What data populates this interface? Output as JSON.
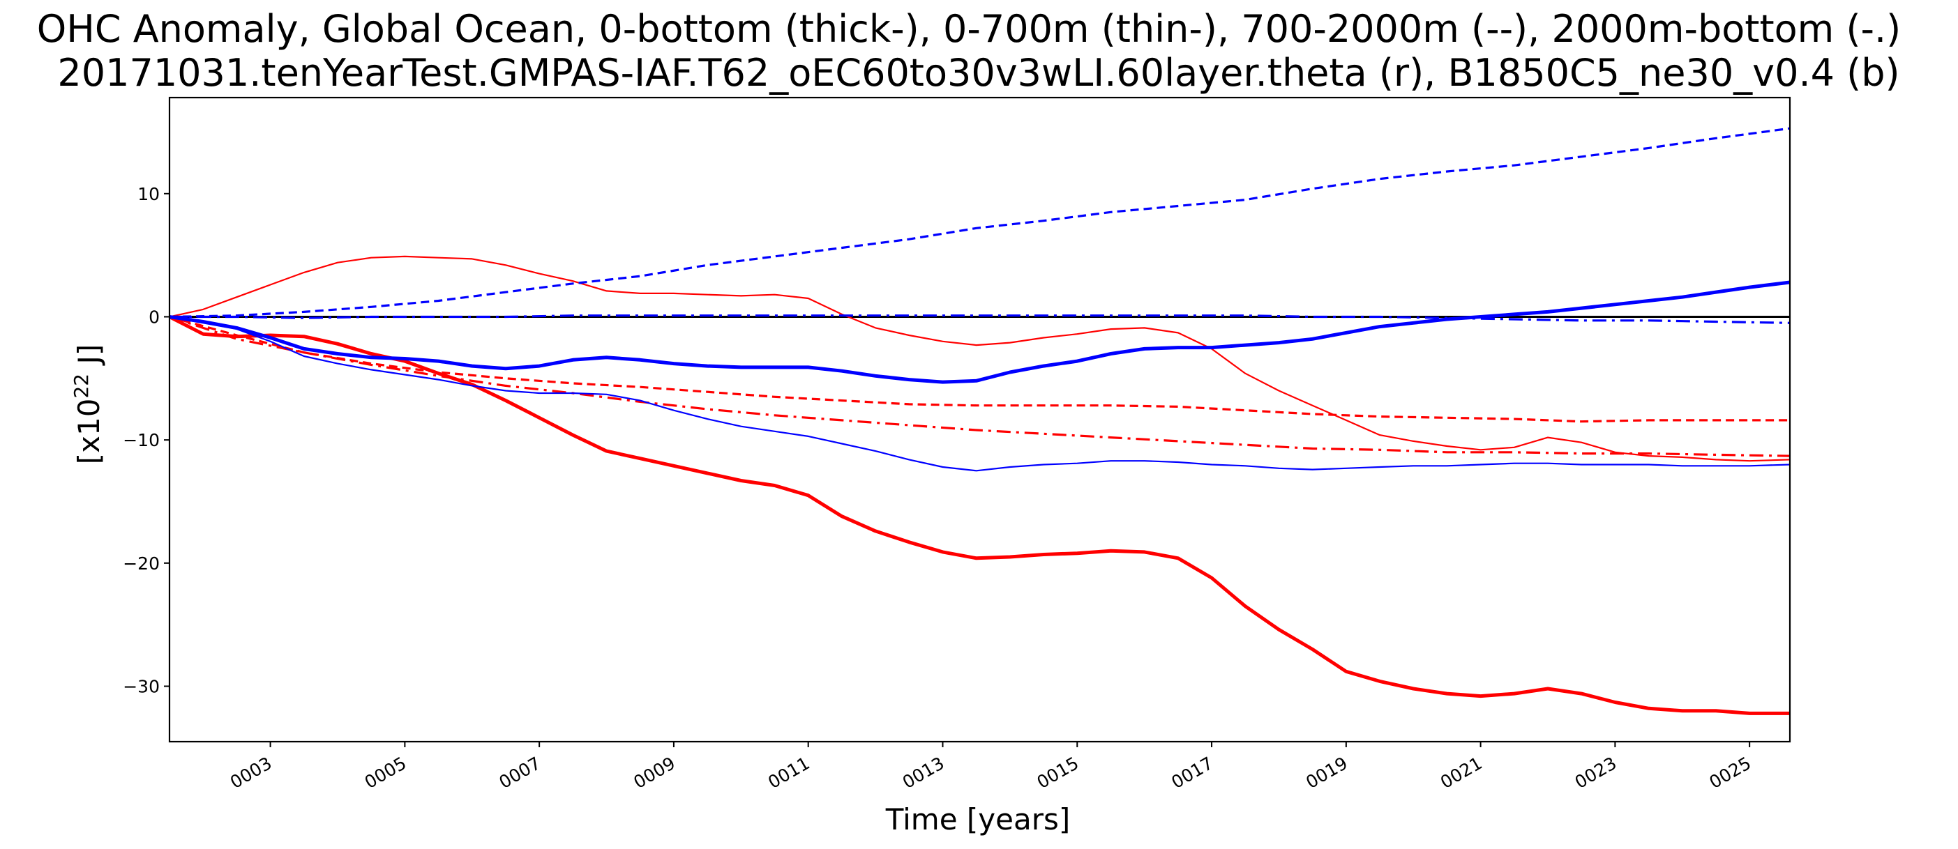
{
  "chart_data": {
    "type": "line",
    "title": "OHC Anomaly, Global Ocean, 0-bottom (thick-), 0-700m (thin-), 700-2000m (--), 2000m-bottom (-.)",
    "subtitle": "20171031.tenYearTest.GMPAS-IAF.T62_oEC60to30v3wLI.60layer.theta (r), B1850C5_ne30_v0.4 (b)",
    "xlabel": "Time [years]",
    "ylabel_base": "[x10",
    "ylabel_exp": "22",
    "ylabel_unit": " J]",
    "xlim": [
      1.5,
      25.6
    ],
    "ylim": [
      -34.5,
      17.8
    ],
    "x_ticks": [
      3,
      5,
      7,
      9,
      11,
      13,
      15,
      17,
      19,
      21,
      23,
      25
    ],
    "x_tick_labels": [
      "0003",
      "0005",
      "0007",
      "0009",
      "0011",
      "0013",
      "0015",
      "0017",
      "0019",
      "0021",
      "0023",
      "0025"
    ],
    "y_ticks": [
      10,
      0,
      -10,
      -20,
      -30
    ],
    "y_tick_labels": [
      "10",
      "0",
      "−10",
      "−20",
      "−30"
    ],
    "zero_line": true,
    "series": [
      {
        "name": "red 0-bottom (thick)",
        "color": "#ff0000",
        "style": "solid",
        "weight": "thick",
        "x": [
          1.5,
          2.0,
          2.5,
          3.0,
          3.5,
          4.0,
          4.5,
          5.0,
          5.5,
          6.0,
          6.5,
          7.0,
          7.5,
          8.0,
          8.5,
          9.0,
          9.5,
          10.0,
          10.5,
          11.0,
          11.5,
          12.0,
          12.5,
          13.0,
          13.5,
          14.0,
          14.5,
          15.0,
          15.5,
          16.0,
          16.5,
          17.0,
          17.5,
          18.0,
          18.5,
          19.0,
          19.5,
          20.0,
          20.5,
          21.0,
          21.5,
          22.0,
          22.5,
          23.0,
          23.5,
          24.0,
          24.5,
          25.0,
          25.6
        ],
        "y": [
          0,
          -1.4,
          -1.6,
          -1.5,
          -1.6,
          -2.2,
          -3.0,
          -3.6,
          -4.6,
          -5.5,
          -6.8,
          -8.2,
          -9.6,
          -10.9,
          -11.5,
          -12.1,
          -12.7,
          -13.3,
          -13.7,
          -14.5,
          -16.2,
          -17.4,
          -18.3,
          -19.1,
          -19.6,
          -19.5,
          -19.3,
          -19.2,
          -19.0,
          -19.1,
          -19.6,
          -21.2,
          -23.5,
          -25.4,
          -27.0,
          -28.8,
          -29.6,
          -30.2,
          -30.6,
          -30.8,
          -30.6,
          -30.2,
          -30.6,
          -31.3,
          -31.8,
          -32.0,
          -32.0,
          -32.2,
          -32.2
        ]
      },
      {
        "name": "red 0-700m (thin)",
        "color": "#ff0000",
        "style": "solid",
        "weight": "thin",
        "x": [
          1.5,
          2.0,
          2.5,
          3.0,
          3.5,
          4.0,
          4.5,
          5.0,
          5.5,
          6.0,
          6.5,
          7.0,
          7.5,
          8.0,
          8.5,
          9.0,
          9.5,
          10.0,
          10.5,
          11.0,
          11.5,
          12.0,
          12.5,
          13.0,
          13.5,
          14.0,
          14.5,
          15.0,
          15.5,
          16.0,
          16.5,
          17.0,
          17.5,
          18.0,
          18.5,
          19.0,
          19.5,
          20.0,
          20.5,
          21.0,
          21.5,
          22.0,
          22.5,
          23.0,
          23.5,
          24.0,
          24.5,
          25.0,
          25.6
        ],
        "y": [
          0,
          0.6,
          1.6,
          2.6,
          3.6,
          4.4,
          4.8,
          4.9,
          4.8,
          4.7,
          4.2,
          3.5,
          2.9,
          2.1,
          1.9,
          1.9,
          1.8,
          1.7,
          1.8,
          1.5,
          0.2,
          -0.9,
          -1.5,
          -2.0,
          -2.3,
          -2.1,
          -1.7,
          -1.4,
          -1.0,
          -0.9,
          -1.3,
          -2.6,
          -4.6,
          -6.0,
          -7.2,
          -8.4,
          -9.6,
          -10.1,
          -10.5,
          -10.8,
          -10.6,
          -9.8,
          -10.2,
          -11.0,
          -11.3,
          -11.4,
          -11.6,
          -11.7,
          -11.6
        ]
      },
      {
        "name": "red 700-2000m (--)",
        "color": "#ff0000",
        "style": "dashed",
        "weight": "medium",
        "x": [
          1.5,
          2.5,
          3.5,
          4.5,
          5.5,
          6.5,
          7.5,
          8.5,
          9.5,
          10.5,
          11.5,
          12.5,
          13.5,
          14.5,
          15.5,
          16.5,
          17.5,
          18.5,
          19.5,
          20.5,
          21.5,
          22.5,
          23.5,
          24.5,
          25.6
        ],
        "y": [
          0,
          -1.5,
          -2.9,
          -3.8,
          -4.5,
          -5.0,
          -5.4,
          -5.7,
          -6.1,
          -6.5,
          -6.8,
          -7.1,
          -7.2,
          -7.2,
          -7.2,
          -7.3,
          -7.6,
          -7.9,
          -8.1,
          -8.2,
          -8.3,
          -8.5,
          -8.4,
          -8.4,
          -8.4
        ]
      },
      {
        "name": "red 2000m-bottom (-.)",
        "color": "#ff0000",
        "style": "dashdot",
        "weight": "medium",
        "x": [
          1.5,
          2.5,
          3.5,
          4.5,
          5.5,
          6.5,
          7.5,
          8.5,
          9.5,
          10.5,
          11.5,
          12.5,
          13.5,
          14.5,
          15.5,
          16.5,
          17.5,
          18.5,
          19.5,
          20.5,
          21.5,
          22.5,
          23.5,
          24.5,
          25.6
        ],
        "y": [
          0,
          -1.8,
          -2.9,
          -3.9,
          -4.8,
          -5.6,
          -6.2,
          -6.9,
          -7.5,
          -8.0,
          -8.4,
          -8.8,
          -9.2,
          -9.5,
          -9.8,
          -10.1,
          -10.4,
          -10.7,
          -10.8,
          -11.0,
          -11.0,
          -11.1,
          -11.1,
          -11.2,
          -11.3
        ]
      },
      {
        "name": "blue 0-bottom (thick)",
        "color": "#0000ff",
        "style": "solid",
        "weight": "thick",
        "x": [
          1.5,
          2.0,
          2.5,
          3.0,
          3.5,
          4.0,
          4.5,
          5.0,
          5.5,
          6.0,
          6.5,
          7.0,
          7.5,
          8.0,
          8.5,
          9.0,
          9.5,
          10.0,
          10.5,
          11.0,
          11.5,
          12.0,
          12.5,
          13.0,
          13.5,
          14.0,
          14.5,
          15.0,
          15.5,
          16.0,
          16.5,
          17.0,
          17.5,
          18.0,
          18.5,
          19.0,
          19.5,
          20.0,
          20.5,
          21.0,
          21.5,
          22.0,
          22.5,
          23.0,
          23.5,
          24.0,
          24.5,
          25.0,
          25.6
        ],
        "y": [
          0,
          -0.4,
          -0.9,
          -1.7,
          -2.6,
          -3.0,
          -3.3,
          -3.4,
          -3.6,
          -4.0,
          -4.2,
          -4.0,
          -3.5,
          -3.3,
          -3.5,
          -3.8,
          -4.0,
          -4.1,
          -4.1,
          -4.1,
          -4.4,
          -4.8,
          -5.1,
          -5.3,
          -5.2,
          -4.5,
          -4.0,
          -3.6,
          -3.0,
          -2.6,
          -2.5,
          -2.5,
          -2.3,
          -2.1,
          -1.8,
          -1.3,
          -0.8,
          -0.5,
          -0.2,
          0.0,
          0.2,
          0.4,
          0.7,
          1.0,
          1.3,
          1.6,
          2.0,
          2.4,
          2.8
        ]
      },
      {
        "name": "blue 0-700m (thin)",
        "color": "#0000ff",
        "style": "solid",
        "weight": "thin",
        "x": [
          1.5,
          2.0,
          2.5,
          3.0,
          3.5,
          4.0,
          4.5,
          5.0,
          5.5,
          6.0,
          6.5,
          7.0,
          7.5,
          8.0,
          8.5,
          9.0,
          9.5,
          10.0,
          10.5,
          11.0,
          11.5,
          12.0,
          12.5,
          13.0,
          13.5,
          14.0,
          14.5,
          15.0,
          15.5,
          16.0,
          16.5,
          17.0,
          17.5,
          18.0,
          18.5,
          19.0,
          19.5,
          20.0,
          20.5,
          21.0,
          21.5,
          22.0,
          22.5,
          23.0,
          23.5,
          24.0,
          24.5,
          25.0,
          25.6
        ],
        "y": [
          0,
          -0.5,
          -1.0,
          -2.0,
          -3.2,
          -3.8,
          -4.3,
          -4.7,
          -5.1,
          -5.6,
          -6.0,
          -6.2,
          -6.2,
          -6.3,
          -6.8,
          -7.6,
          -8.3,
          -8.9,
          -9.3,
          -9.7,
          -10.3,
          -10.9,
          -11.6,
          -12.2,
          -12.5,
          -12.2,
          -12.0,
          -11.9,
          -11.7,
          -11.7,
          -11.8,
          -12.0,
          -12.1,
          -12.3,
          -12.4,
          -12.3,
          -12.2,
          -12.1,
          -12.1,
          -12.0,
          -11.9,
          -11.9,
          -12.0,
          -12.0,
          -12.0,
          -12.1,
          -12.1,
          -12.1,
          -12.0
        ]
      },
      {
        "name": "blue 700-2000m (--)",
        "color": "#0000ff",
        "style": "dashed",
        "weight": "medium",
        "x": [
          1.5,
          2.5,
          3.5,
          4.5,
          5.5,
          6.5,
          7.5,
          8.5,
          9.5,
          10.5,
          11.5,
          12.5,
          13.5,
          14.5,
          15.5,
          16.5,
          17.5,
          18.5,
          19.5,
          20.5,
          21.5,
          22.5,
          23.5,
          24.5,
          25.6
        ],
        "y": [
          0,
          0.1,
          0.4,
          0.8,
          1.3,
          2.0,
          2.7,
          3.3,
          4.2,
          4.9,
          5.6,
          6.3,
          7.2,
          7.8,
          8.5,
          9.0,
          9.5,
          10.4,
          11.2,
          11.8,
          12.3,
          13.0,
          13.7,
          14.5,
          15.3
        ]
      },
      {
        "name": "blue 2000m-bottom (-.)",
        "color": "#0000ff",
        "style": "dashdot",
        "weight": "medium",
        "x": [
          1.5,
          2.5,
          3.5,
          4.5,
          5.5,
          6.5,
          7.5,
          8.5,
          9.5,
          10.5,
          11.5,
          12.5,
          13.5,
          14.5,
          15.5,
          16.5,
          17.5,
          18.5,
          19.5,
          20.5,
          21.5,
          22.5,
          23.5,
          24.5,
          25.6
        ],
        "y": [
          0,
          0.0,
          -0.1,
          0.0,
          0.0,
          0.0,
          0.1,
          0.1,
          0.1,
          0.1,
          0.1,
          0.1,
          0.1,
          0.1,
          0.1,
          0.1,
          0.1,
          0.0,
          0.0,
          -0.1,
          -0.2,
          -0.3,
          -0.3,
          -0.4,
          -0.5
        ]
      }
    ]
  }
}
